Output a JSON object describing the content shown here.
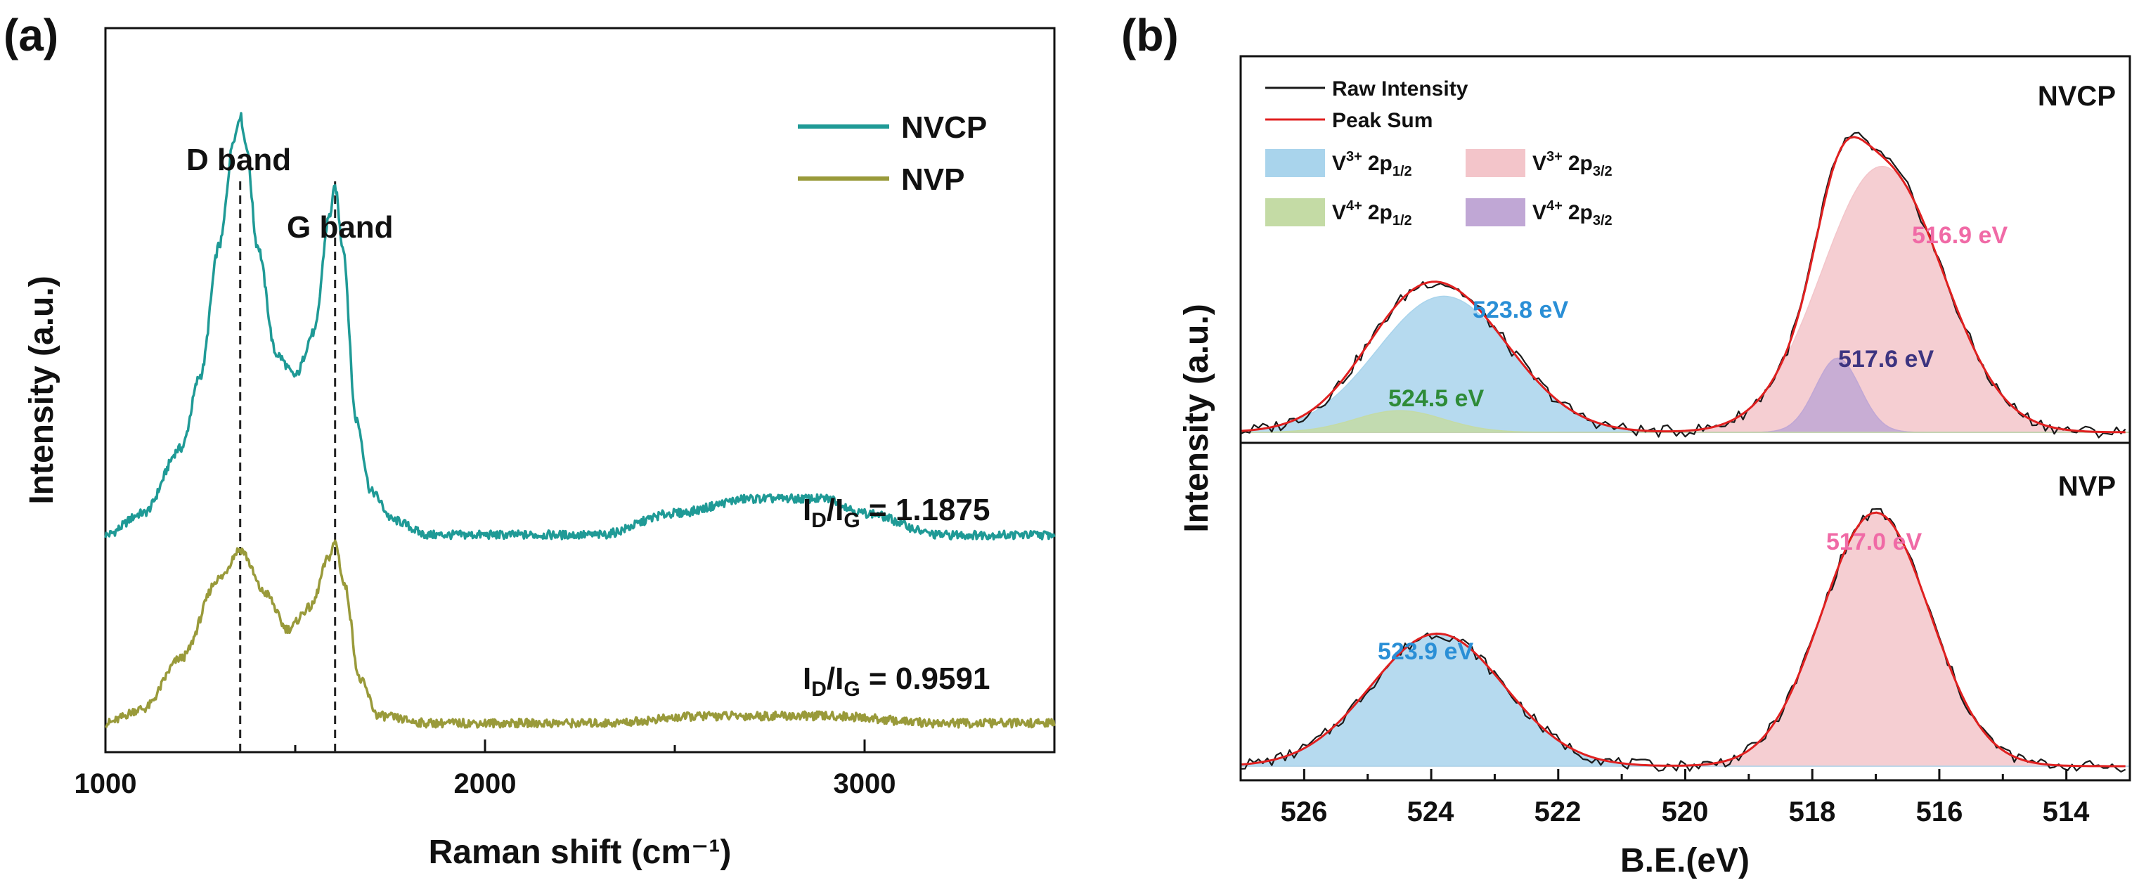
{
  "colors": {
    "nvcp": "#1f9a96",
    "nvp": "#999a3a",
    "raw": "#1a1a1a",
    "peak_sum": "#e02020",
    "v3_2p12_fill": "#a9d4ec",
    "v3_2p32_fill": "#f3c5ca",
    "v4_2p12_fill": "#c4dba5",
    "v4_2p32_fill": "#c0a7d5",
    "label_blue": "#2a8fd6",
    "label_pink": "#f06aa6",
    "label_green": "#2e8b38",
    "label_purple": "#3d3480"
  },
  "chart_data": [
    {
      "panel": "(a)",
      "type": "line",
      "title": "",
      "xlabel": "Raman shift (cm⁻¹)",
      "ylabel": "Intensity (a.u.)",
      "xlim": [
        1000,
        3500
      ],
      "x_ticks": [
        "1000",
        "2000",
        "3000"
      ],
      "x_tick_values": [
        1000,
        2000,
        3000
      ],
      "y_ticks": [],
      "legend": [
        "NVCP",
        "NVP"
      ],
      "annotations": {
        "d_band": "D band",
        "g_band": "G band",
        "d_band_position": 1355,
        "g_band_position": 1605
      },
      "ratios": [
        {
          "series": "NVCP",
          "label": "I",
          "sub1": "D",
          "slash": "/I",
          "sub2": "G",
          "value_text": " = 1.1875",
          "value": 1.1875
        },
        {
          "series": "NVP",
          "label": "I",
          "sub1": "D",
          "slash": "/I",
          "sub2": "G",
          "value_text": " = 0.9591",
          "value": 0.9591
        }
      ],
      "series": [
        {
          "name": "NVCP",
          "baseline": 0.3,
          "points": [
            [
              1000,
              0.3
            ],
            [
              1100,
              0.33
            ],
            [
              1200,
              0.42
            ],
            [
              1250,
              0.52
            ],
            [
              1300,
              0.7
            ],
            [
              1340,
              0.85
            ],
            [
              1355,
              0.88
            ],
            [
              1370,
              0.84
            ],
            [
              1400,
              0.7
            ],
            [
              1450,
              0.55
            ],
            [
              1500,
              0.52
            ],
            [
              1550,
              0.58
            ],
            [
              1590,
              0.74
            ],
            [
              1605,
              0.78
            ],
            [
              1625,
              0.7
            ],
            [
              1660,
              0.46
            ],
            [
              1700,
              0.36
            ],
            [
              1760,
              0.32
            ],
            [
              1850,
              0.3
            ],
            [
              2000,
              0.3
            ],
            [
              2300,
              0.3
            ],
            [
              2500,
              0.33
            ],
            [
              2700,
              0.35
            ],
            [
              2900,
              0.35
            ],
            [
              3000,
              0.33
            ],
            [
              3200,
              0.3
            ],
            [
              3500,
              0.3
            ]
          ]
        },
        {
          "name": "NVP",
          "baseline": 0.04,
          "points": [
            [
              1000,
              0.04
            ],
            [
              1100,
              0.06
            ],
            [
              1200,
              0.13
            ],
            [
              1300,
              0.24
            ],
            [
              1355,
              0.28
            ],
            [
              1420,
              0.22
            ],
            [
              1480,
              0.17
            ],
            [
              1540,
              0.2
            ],
            [
              1590,
              0.27
            ],
            [
              1605,
              0.29
            ],
            [
              1630,
              0.23
            ],
            [
              1670,
              0.1
            ],
            [
              1720,
              0.05
            ],
            [
              1850,
              0.04
            ],
            [
              2000,
              0.04
            ],
            [
              2300,
              0.04
            ],
            [
              2600,
              0.05
            ],
            [
              2900,
              0.05
            ],
            [
              3200,
              0.04
            ],
            [
              3500,
              0.04
            ]
          ]
        }
      ]
    },
    {
      "panel": "(b)",
      "type": "area",
      "title": "",
      "xlabel": "B.E.(eV)",
      "ylabel": "Intensity (a.u.)",
      "xlim": [
        527,
        513
      ],
      "x_ticks": [
        "526",
        "524",
        "522",
        "520",
        "518",
        "516",
        "514"
      ],
      "x_tick_values": [
        526,
        524,
        522,
        520,
        518,
        516,
        514
      ],
      "legend": {
        "raw": "Raw Intensity",
        "sum": "Peak Sum",
        "v3_12": {
          "ion": "V",
          "charge": "3+",
          "orbital": "2p",
          "sub": "1/2"
        },
        "v3_32": {
          "ion": "V",
          "charge": "3+",
          "orbital": "2p",
          "sub": "3/2"
        },
        "v4_12": {
          "ion": "V",
          "charge": "4+",
          "orbital": "2p",
          "sub": "1/2"
        },
        "v4_32": {
          "ion": "V",
          "charge": "4+",
          "orbital": "2p",
          "sub": "3/2"
        }
      },
      "subplots": [
        {
          "name": "NVCP",
          "components": [
            {
              "species": "V3+ 2p1/2",
              "center": 523.8,
              "height": 0.44,
              "sigma": 1.05,
              "label": "523.8 eV"
            },
            {
              "species": "V4+ 2p1/2",
              "center": 524.5,
              "height": 0.07,
              "sigma": 0.7,
              "label": "524.5 eV"
            },
            {
              "species": "V3+ 2p3/2",
              "center": 516.9,
              "height": 0.86,
              "sigma": 0.95,
              "label": "516.9 eV"
            },
            {
              "species": "V4+ 2p3/2",
              "center": 517.6,
              "height": 0.24,
              "sigma": 0.35,
              "label": "517.6 eV"
            }
          ]
        },
        {
          "name": "NVP",
          "components": [
            {
              "species": "V3+ 2p1/2",
              "center": 523.9,
              "height": 0.46,
              "sigma": 1.05,
              "label": "523.9 eV"
            },
            {
              "species": "V3+ 2p3/2",
              "center": 517.0,
              "height": 0.88,
              "sigma": 0.85,
              "label": "517.0 eV"
            }
          ]
        }
      ]
    }
  ]
}
